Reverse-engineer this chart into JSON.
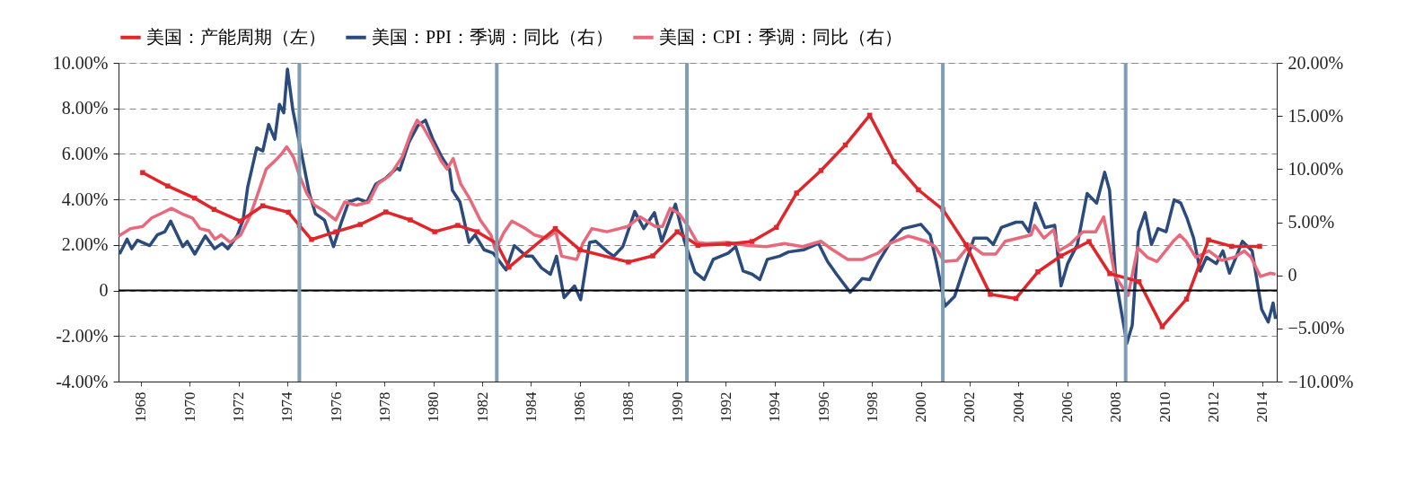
{
  "chart_data": {
    "type": "line",
    "xlim": [
      1967.08,
      2014.6
    ],
    "xticks": [
      1968,
      1970,
      1972,
      1974,
      1976,
      1978,
      1980,
      1982,
      1984,
      1986,
      1988,
      1990,
      1992,
      1994,
      1996,
      1998,
      2000,
      2002,
      2004,
      2006,
      2008,
      2010,
      2012,
      2014
    ],
    "ylim": [
      -4,
      10
    ],
    "yticks": [
      {
        "value": -4,
        "label": "-4.00%"
      },
      {
        "value": -2,
        "label": "-2.00%"
      },
      0,
      {
        "value": 2,
        "label": "2.00%"
      },
      {
        "value": 4,
        "label": "4.00%"
      },
      {
        "value": 6,
        "label": "6.00%"
      },
      {
        "value": 8,
        "label": "8.00%"
      },
      {
        "value": 10,
        "label": "10.00%"
      }
    ],
    "y2lim": [
      -10,
      20
    ],
    "y2ticks": [
      {
        "value": -10,
        "label": "−10.00%"
      },
      {
        "value": -5,
        "label": "−5.00%"
      },
      0,
      {
        "value": 5,
        "label": "5.00%"
      },
      {
        "value": 10,
        "label": "10.00%"
      },
      {
        "value": 15,
        "label": "15.00%"
      },
      {
        "value": 20,
        "label": "20.00%"
      }
    ],
    "grid": "y",
    "legend": "top",
    "line_style": "solid",
    "ref_lines": [
      {
        "axis": "y",
        "value": 0,
        "color": "#000000"
      },
      {
        "axis": "x",
        "value": 1974.5,
        "color": "#7f9db3"
      },
      {
        "axis": "x",
        "value": 1982.6,
        "color": "#7f9db3"
      },
      {
        "axis": "x",
        "value": 1990.4,
        "color": "#7f9db3"
      },
      {
        "axis": "x",
        "value": 2000.9,
        "color": "#7f9db3"
      },
      {
        "axis": "x",
        "value": 2008.4,
        "color": "#7f9db3"
      }
    ],
    "series": [
      {
        "name": "美国：产能周期（左）",
        "color": "#e0262b",
        "marker": "square",
        "x": [
          1968.07,
          1969.1,
          1970.2,
          1971.0,
          1972.07,
          1973.0,
          1974.05,
          1974.5,
          1975.0,
          1976.0,
          1977.0,
          1978.05,
          1979.05,
          1980.05,
          1981.0,
          1981.8,
          1982.6,
          1983.1,
          1985.0,
          1986.0,
          1988.0,
          1989.0,
          1990.0,
          1990.85,
          1992.1,
          1993.07,
          1994.07,
          1994.9,
          1995.9,
          1996.9,
          1997.9,
          1998.9,
          1999.9,
          2000.9,
          2001.85,
          2002.85,
          2003.9,
          2004.8,
          2005.75,
          2006.9,
          2007.75,
          2008.95,
          2009.9,
          2010.9,
          2011.8,
          2012.75,
          2013.9
        ],
        "values": [
          5.18,
          4.59,
          4.06,
          3.56,
          3.05,
          3.72,
          3.44,
          2.86,
          2.24,
          2.58,
          2.9,
          3.45,
          3.1,
          2.58,
          2.86,
          2.58,
          2.06,
          1.02,
          2.72,
          1.79,
          1.25,
          1.52,
          2.58,
          1.98,
          2.04,
          2.15,
          2.77,
          4.28,
          5.27,
          6.39,
          7.7,
          5.66,
          4.42,
          3.56,
          2.01,
          -0.17,
          -0.35,
          0.82,
          1.52,
          2.15,
          0.74,
          0.39,
          -1.59,
          -0.38,
          2.22,
          1.94,
          1.94
        ]
      },
      {
        "name": "美国：PPI：季调：同比（右）",
        "color": "#2b4a7e",
        "axis": "y2",
        "x": [
          1967.12,
          1967.43,
          1967.62,
          1967.86,
          1968.36,
          1968.67,
          1968.98,
          1969.22,
          1969.72,
          1969.9,
          1970.21,
          1970.64,
          1971.02,
          1971.33,
          1971.57,
          1971.94,
          1972.19,
          1972.38,
          1972.75,
          1973.0,
          1973.24,
          1973.49,
          1973.68,
          1973.86,
          1974.01,
          1974.23,
          1974.54,
          1974.91,
          1975.16,
          1975.53,
          1975.9,
          1976.21,
          1976.52,
          1976.9,
          1977.27,
          1977.64,
          1978.01,
          1978.5,
          1978.62,
          1978.99,
          1979.36,
          1979.67,
          1979.98,
          1980.35,
          1980.66,
          1980.78,
          1981.09,
          1981.46,
          1981.71,
          1982.08,
          1982.45,
          1982.98,
          1983.32,
          1983.81,
          1984.06,
          1984.43,
          1984.8,
          1985.05,
          1985.36,
          1985.79,
          1986.04,
          1986.41,
          1986.66,
          1987.15,
          1987.4,
          1987.77,
          1988.26,
          1988.63,
          1989.07,
          1989.37,
          1989.93,
          1990.3,
          1990.73,
          1991.11,
          1991.48,
          1992.1,
          1992.4,
          1992.71,
          1993.08,
          1993.39,
          1993.7,
          1994.2,
          1994.57,
          1995.18,
          1995.8,
          1996.17,
          1996.54,
          1997.1,
          1997.6,
          1997.9,
          1998.27,
          1998.77,
          1999.27,
          2000.0,
          2000.38,
          2000.63,
          2000.99,
          2001.38,
          2001.78,
          2002.18,
          2002.71,
          2002.97,
          2003.3,
          2003.9,
          2004.16,
          2004.43,
          2004.69,
          2005.09,
          2005.49,
          2005.75,
          2006.02,
          2006.42,
          2006.82,
          2007.21,
          2007.54,
          2007.74,
          2008.0,
          2008.45,
          2008.67,
          2008.93,
          2009.2,
          2009.46,
          2009.73,
          2010.06,
          2010.39,
          2010.66,
          2010.93,
          2011.19,
          2011.46,
          2011.72,
          2012.12,
          2012.39,
          2012.66,
          2013.19,
          2013.59,
          2013.98,
          2014.25,
          2014.45,
          2014.55
        ],
        "values": [
          2.0,
          3.4,
          2.5,
          3.3,
          2.8,
          3.8,
          4.1,
          5.1,
          2.7,
          3.2,
          2.0,
          3.7,
          2.5,
          3.0,
          2.5,
          3.7,
          5.2,
          8.3,
          12.0,
          11.7,
          14.2,
          12.8,
          16.1,
          15.3,
          19.4,
          15.6,
          12.0,
          7.7,
          5.8,
          5.2,
          2.7,
          4.9,
          6.9,
          7.2,
          6.9,
          8.6,
          9.1,
          10.1,
          9.9,
          12.5,
          14.1,
          14.6,
          12.8,
          11.1,
          10.0,
          8.0,
          6.9,
          3.1,
          3.8,
          2.4,
          2.1,
          0.5,
          2.8,
          1.8,
          1.8,
          0.7,
          0.1,
          1.8,
          -2.1,
          -1.0,
          -2.3,
          3.1,
          3.2,
          2.2,
          1.8,
          2.7,
          6.0,
          4.4,
          5.9,
          3.2,
          6.7,
          3.2,
          0.3,
          -0.4,
          1.5,
          2.1,
          2.7,
          0.4,
          0.1,
          -0.4,
          1.5,
          1.8,
          2.2,
          2.4,
          3.0,
          1.3,
          0.1,
          -1.6,
          -0.3,
          -0.4,
          1.3,
          3.2,
          4.4,
          4.8,
          3.8,
          1.3,
          -2.9,
          -2.0,
          0.8,
          3.5,
          3.5,
          2.9,
          4.5,
          5.0,
          5.0,
          4.1,
          6.8,
          4.5,
          4.7,
          -1.0,
          1.1,
          2.9,
          7.7,
          6.8,
          9.7,
          8.0,
          -0.4,
          -6.4,
          -4.7,
          4.1,
          5.9,
          2.9,
          4.4,
          4.1,
          7.1,
          6.8,
          5.3,
          3.5,
          0.4,
          1.7,
          1.1,
          2.3,
          0.2,
          3.2,
          2.3,
          -3.2,
          -4.4,
          -2.6,
          -4.1
        ]
      },
      {
        "name": "美国：CPI：季调：同比（右）",
        "color": "#e8697b",
        "axis": "y2",
        "x": [
          1967.08,
          1967.58,
          1968.07,
          1968.44,
          1968.81,
          1969.25,
          1969.68,
          1970.11,
          1970.42,
          1970.79,
          1971.04,
          1971.29,
          1971.66,
          1972.09,
          1972.46,
          1972.77,
          1973.14,
          1973.51,
          1973.76,
          1973.98,
          1974.26,
          1974.5,
          1974.81,
          1975.12,
          1975.49,
          1975.99,
          1976.36,
          1976.85,
          1977.35,
          1977.72,
          1978.21,
          1978.71,
          1979.08,
          1979.33,
          1979.57,
          1979.94,
          1980.31,
          1980.56,
          1980.81,
          1981.12,
          1981.49,
          1981.92,
          1982.36,
          1982.54,
          1982.91,
          1983.22,
          1983.78,
          1984.15,
          1984.64,
          1985.02,
          1985.26,
          1985.88,
          1986.13,
          1986.5,
          1987.12,
          1987.98,
          1988.48,
          1989.1,
          1989.4,
          1989.71,
          1990.08,
          1990.45,
          1990.82,
          1991.19,
          1992.06,
          1992.92,
          1993.66,
          1994.4,
          1995.15,
          1995.89,
          1996.38,
          1997.0,
          1997.62,
          1998.24,
          1998.73,
          1999.48,
          2000.22,
          2000.59,
          2000.95,
          2001.48,
          2002.01,
          2002.54,
          2003.07,
          2003.46,
          2003.99,
          2004.52,
          2004.66,
          2005.05,
          2005.45,
          2005.65,
          2006.11,
          2006.64,
          2007.17,
          2007.5,
          2007.7,
          2007.97,
          2008.5,
          2008.9,
          2009.29,
          2009.69,
          2010.35,
          2010.62,
          2010.88,
          2011.28,
          2011.81,
          2012.34,
          2012.87,
          2013.27,
          2013.54,
          2013.93,
          2014.33,
          2014.55
        ],
        "values": [
          3.7,
          4.4,
          4.6,
          5.4,
          5.8,
          6.3,
          5.8,
          5.4,
          4.4,
          4.2,
          3.4,
          3.8,
          3.1,
          3.8,
          5.5,
          7.5,
          10.0,
          10.8,
          11.4,
          12.1,
          11.1,
          9.4,
          7.7,
          6.6,
          6.1,
          5.2,
          6.9,
          6.6,
          6.9,
          8.6,
          9.4,
          11.1,
          13.4,
          14.6,
          14.0,
          12.5,
          10.8,
          10.0,
          11.0,
          8.6,
          7.2,
          5.2,
          3.8,
          2.4,
          4.1,
          5.1,
          4.4,
          3.8,
          3.5,
          4.1,
          1.8,
          1.5,
          3.0,
          4.4,
          4.1,
          4.6,
          5.5,
          4.6,
          4.6,
          6.3,
          5.8,
          4.6,
          3.1,
          3.0,
          3.1,
          2.8,
          2.7,
          3.0,
          2.7,
          3.2,
          2.4,
          1.5,
          1.5,
          2.1,
          3.0,
          3.7,
          3.2,
          2.7,
          1.3,
          1.4,
          2.9,
          2.0,
          2.0,
          3.2,
          3.5,
          3.8,
          4.7,
          3.5,
          4.3,
          2.3,
          2.9,
          4.1,
          4.1,
          5.5,
          3.2,
          -0.1,
          -1.9,
          2.6,
          1.7,
          1.3,
          3.2,
          3.8,
          3.2,
          1.7,
          2.3,
          1.4,
          1.7,
          2.3,
          1.7,
          -0.1,
          0.2,
          0.1
        ]
      }
    ]
  }
}
